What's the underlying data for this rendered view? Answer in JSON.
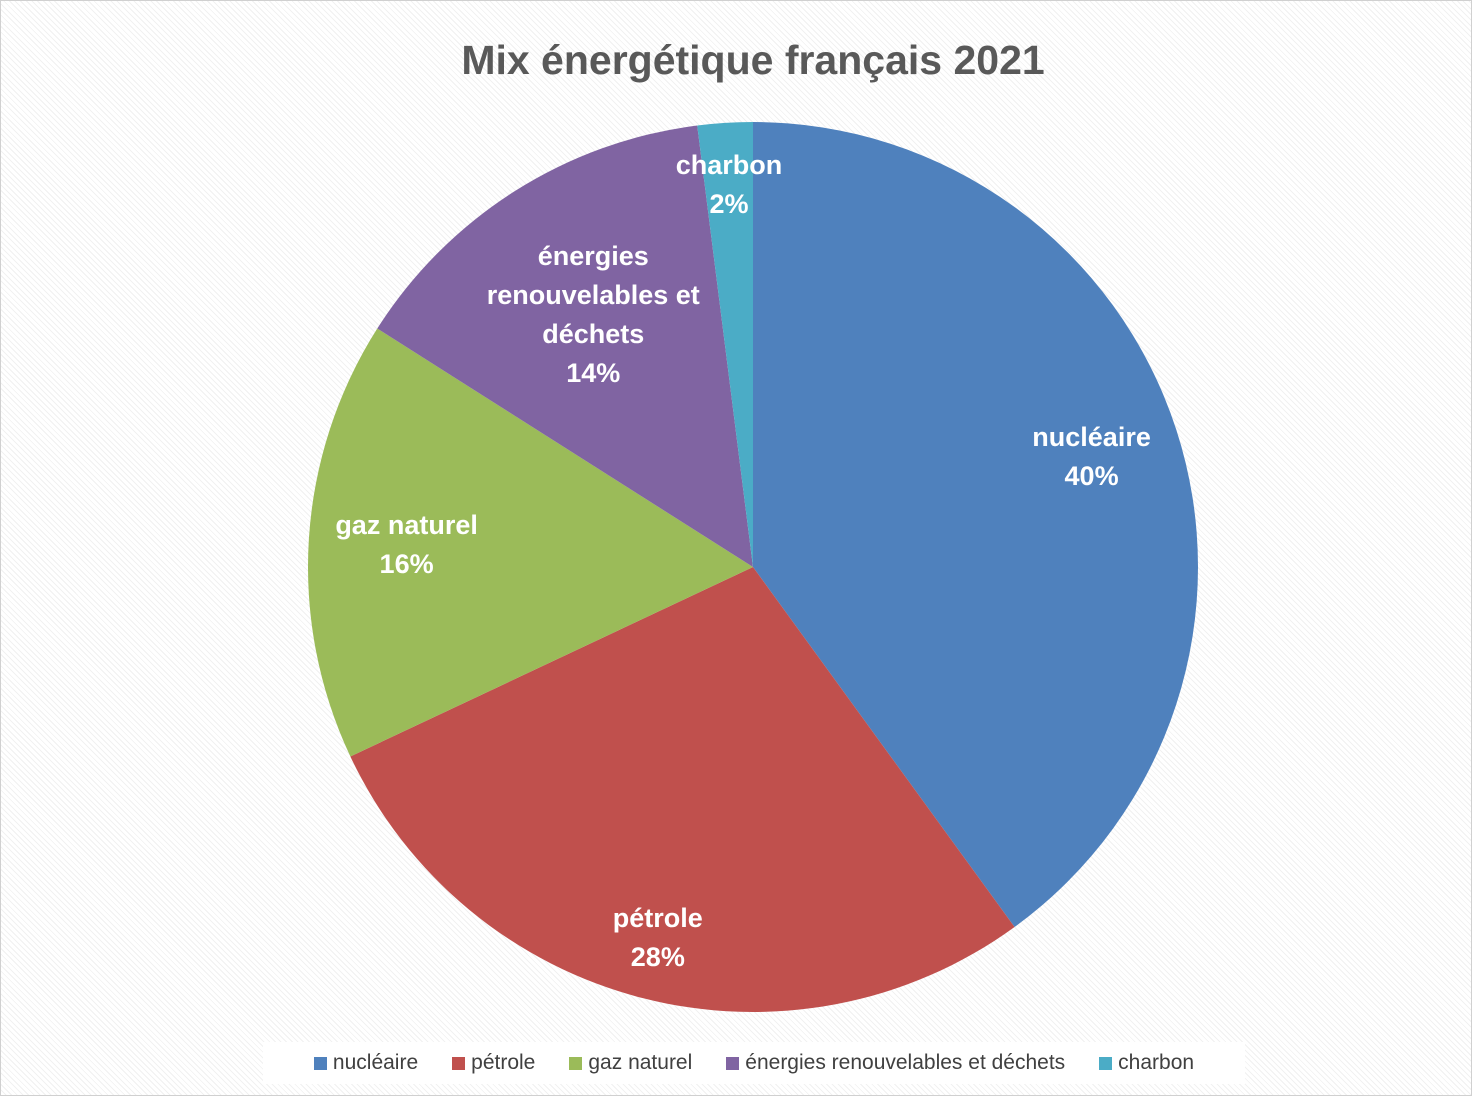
{
  "chart_data": {
    "type": "pie",
    "title": "Mix énergétique français 2021",
    "categories": [
      "nucléaire",
      "pétrole",
      "gaz naturel",
      "énergies renouvelables et déchets",
      "charbon"
    ],
    "values": [
      40,
      28,
      16,
      14,
      2
    ],
    "value_labels": [
      "40%",
      "28%",
      "16%",
      "14%",
      "2%"
    ],
    "colors": [
      "#4f81bd",
      "#c0504d",
      "#9bbb59",
      "#8064a2",
      "#4bacc6"
    ],
    "legend": "bottom"
  }
}
